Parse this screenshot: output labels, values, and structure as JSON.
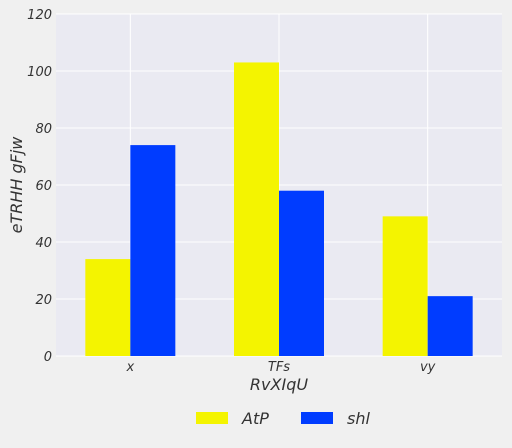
{
  "chart_data": {
    "type": "bar",
    "categories": [
      "x",
      "TFs",
      "vy"
    ],
    "series": [
      {
        "name": "AtP",
        "values": [
          34,
          103,
          49
        ],
        "color": "#f4f400"
      },
      {
        "name": "shl",
        "values": [
          74,
          58,
          21
        ],
        "color": "#003cff"
      }
    ],
    "xlabel": "RvXIqU",
    "ylabel": "eTRHH gFjw",
    "ylim": [
      0,
      120
    ],
    "yticks": [
      0,
      20,
      40,
      60,
      80,
      100,
      120
    ],
    "ytick_labels": [
      "0",
      "20",
      "40",
      "60",
      "80",
      "100",
      "120"
    ],
    "grid": true,
    "legend_position": "bottom-center",
    "plot_background": "#eaeaf2",
    "figure_background": "#f0f0f0",
    "grid_color": "#ffffff"
  }
}
